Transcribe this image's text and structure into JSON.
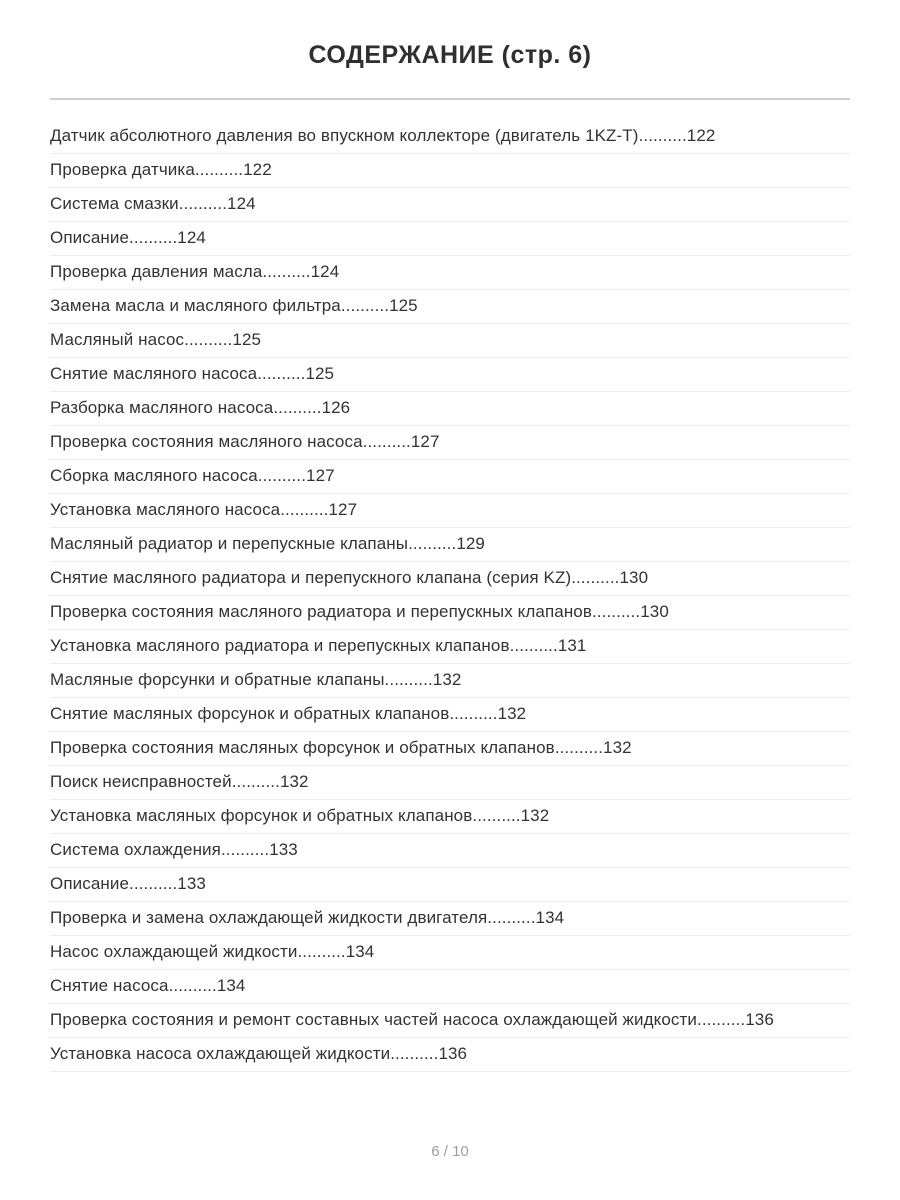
{
  "header": {
    "title": "СОДЕРЖАНИЕ (стр. 6)"
  },
  "toc": {
    "leader": "..........",
    "entries": [
      {
        "label": "Датчик абсолютного давления во впускном коллекторе (двигатель 1KZ-T)",
        "page": "122"
      },
      {
        "label": "Проверка датчика",
        "page": "122"
      },
      {
        "label": "Система смазки",
        "page": "124"
      },
      {
        "label": "Описание",
        "page": "124"
      },
      {
        "label": "Проверка давления масла",
        "page": "124"
      },
      {
        "label": "Замена масла и масляного фильтра",
        "page": "125"
      },
      {
        "label": "Масляный насос",
        "page": "125"
      },
      {
        "label": "Снятие масляного насоса",
        "page": "125"
      },
      {
        "label": "Разборка масляного насоса",
        "page": "126"
      },
      {
        "label": "Проверка состояния масляного насоса",
        "page": "127"
      },
      {
        "label": "Сборка масляного насоса",
        "page": "127"
      },
      {
        "label": "Установка масляного насоса",
        "page": "127"
      },
      {
        "label": "Масляный радиатор и перепускные клапаны",
        "page": "129"
      },
      {
        "label": "Снятие масляного радиатора и перепускного клапана (серия KZ)",
        "page": "130"
      },
      {
        "label": "Проверка состояния масляного радиатора и перепускных клапанов",
        "page": "130"
      },
      {
        "label": "Установка масляного радиатора и перепускных клапанов",
        "page": "131"
      },
      {
        "label": "Масляные форсунки и обратные клапаны",
        "page": "132"
      },
      {
        "label": "Снятие масляных форсунок и обратных клапанов",
        "page": "132"
      },
      {
        "label": "Проверка состояния масляных форсунок и обратных клапанов",
        "page": "132"
      },
      {
        "label": "Поиск неисправностей",
        "page": "132"
      },
      {
        "label": "Установка масляных форсунок и обратных клапанов",
        "page": "132"
      },
      {
        "label": "Система охлаждения",
        "page": "133"
      },
      {
        "label": "Описание",
        "page": "133"
      },
      {
        "label": "Проверка и замена охлаждающей жидкости двигателя",
        "page": "134"
      },
      {
        "label": "Насос охлаждающей жидкости",
        "page": "134"
      },
      {
        "label": "Снятие насоса",
        "page": "134"
      },
      {
        "label": "Проверка состояния и ремонт составных частей насоса охлаждающей жидкости",
        "page": "136"
      },
      {
        "label": "Установка насоса охлаждающей жидкости",
        "page": "136"
      }
    ]
  },
  "footer": {
    "page_indicator": "6 / 10"
  },
  "colors": {
    "text": "#333333",
    "title": "#2f2f2f",
    "divider": "#cfcfcf",
    "row_border": "#ececec",
    "footer_text": "#9e9e9e",
    "background": "#ffffff"
  }
}
